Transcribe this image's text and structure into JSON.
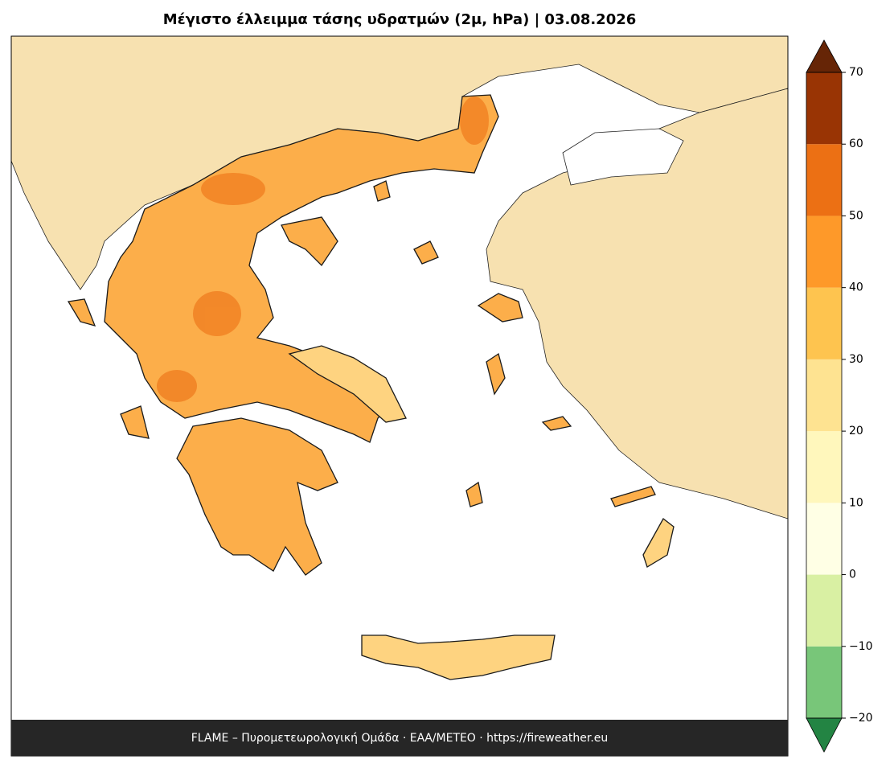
{
  "title": "Μέγιστο έλλειμμα τάσης υδρατμών (2μ, hPa)  |  03.08.2026",
  "footer": "FLAME – Πυρομετεωρολογική Ομάδα · ΕΑΑ/METEO · https://fireweather.eu",
  "colorbar": {
    "levels": [
      {
        "value": -20,
        "label": "−20"
      },
      {
        "value": -10,
        "label": "−10"
      },
      0,
      10,
      20,
      30,
      40,
      50,
      60,
      70
    ],
    "colors": [
      "#78c679",
      "#d9f0a3",
      "#ffffe5",
      "#fff7bc",
      "#fee391",
      "#fec44f",
      "#fe9929",
      "#ec7014",
      "#993404"
    ],
    "under_color": "#238443",
    "over_color": "#662506"
  }
}
